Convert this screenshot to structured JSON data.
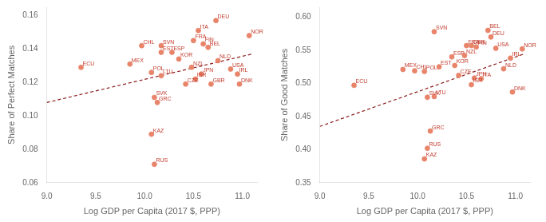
{
  "chart_data": [
    {
      "type": "scatter",
      "xlabel": "Log GDP per Capita (2017 $, PPP)",
      "ylabel": "Share of Perfect Matches",
      "xlim": [
        9.0,
        11.15
      ],
      "ylim": [
        0.06,
        0.165
      ],
      "xticks": [
        {
          "value": 9.0,
          "label": "9.0"
        },
        9.5,
        {
          "value": 10.0,
          "label": "10.0"
        },
        10.5,
        {
          "value": 11.0,
          "label": "11.0"
        }
      ],
      "yticks": [
        0.06,
        0.08,
        {
          "value": 0.1,
          "label": "0.10"
        },
        0.12,
        0.14,
        0.16
      ],
      "grid": false,
      "series": [
        {
          "type": "scatter",
          "color": "#e8846a",
          "marker": "circle",
          "x": [
            9.35,
            9.85,
            9.97,
            10.17,
            10.5,
            10.55,
            11.07,
            10.17,
            10.28,
            10.35,
            10.65,
            10.75,
            10.07,
            10.17,
            10.48,
            10.58,
            10.88,
            10.95,
            10.52,
            10.42,
            10.68,
            10.97,
            10.1,
            10.13,
            10.73,
            10.6,
            10.07,
            10.1
          ],
          "values": [
            0.129,
            0.131,
            0.142,
            0.142,
            0.145,
            0.151,
            0.148,
            0.138,
            0.138,
            0.134,
            0.141,
            0.133,
            0.126,
            0.124,
            0.129,
            0.125,
            0.128,
            0.125,
            0.122,
            0.119,
            0.119,
            0.119,
            0.111,
            0.108,
            0.157,
            0.143,
            0.089,
            0.071
          ]
        },
        {
          "type": "line",
          "color": "#8b1a1a",
          "line_style": "dashed",
          "x": [
            9.0,
            11.1
          ],
          "values": [
            0.108,
            0.137
          ]
        }
      ],
      "annotations": [
        {
          "text": "ECU",
          "x": 9.35,
          "y": 0.129,
          "color": "#c0392b"
        },
        {
          "text": "MEX",
          "x": 9.85,
          "y": 0.131,
          "color": "#c0392b"
        },
        {
          "text": "CHL",
          "x": 9.97,
          "y": 0.142,
          "color": "#c0392b"
        },
        {
          "text": "SVN",
          "x": 10.17,
          "y": 0.142,
          "color": "#c0392b"
        },
        {
          "text": "FRA",
          "x": 10.5,
          "y": 0.145,
          "color": "#c0392b"
        },
        {
          "text": "ITA",
          "x": 10.55,
          "y": 0.151,
          "color": "#c0392b"
        },
        {
          "text": "NOR",
          "x": 11.07,
          "y": 0.148,
          "color": "#c0392b"
        },
        {
          "text": "EST",
          "x": 10.17,
          "y": 0.138,
          "color": "#c0392b"
        },
        {
          "text": "ESP",
          "x": 10.28,
          "y": 0.138,
          "color": "#c0392b"
        },
        {
          "text": "KOR",
          "x": 10.35,
          "y": 0.134,
          "color": "#c0392b"
        },
        {
          "text": "BEL",
          "x": 10.65,
          "y": 0.141,
          "color": "#c0392b"
        },
        {
          "text": "NLD",
          "x": 10.75,
          "y": 0.133,
          "color": "#c0392b"
        },
        {
          "text": "POL",
          "x": 10.07,
          "y": 0.126,
          "color": "#c0392b"
        },
        {
          "text": "LTU",
          "x": 10.17,
          "y": 0.124,
          "color": "#c0392b"
        },
        {
          "text": "NZL",
          "x": 10.48,
          "y": 0.129,
          "color": "#c0392b"
        },
        {
          "text": "JPN",
          "x": 10.58,
          "y": 0.125,
          "color": "#c0392b"
        },
        {
          "text": "USA",
          "x": 10.88,
          "y": 0.128,
          "color": "#c0392b"
        },
        {
          "text": "IRL",
          "x": 10.95,
          "y": 0.125,
          "color": "#c0392b"
        },
        {
          "text": "ISR",
          "x": 10.52,
          "y": 0.122,
          "color": "#c0392b"
        },
        {
          "text": "CZE",
          "x": 10.42,
          "y": 0.119,
          "color": "#c0392b"
        },
        {
          "text": "GBR",
          "x": 10.68,
          "y": 0.119,
          "color": "#c0392b"
        },
        {
          "text": "DNK",
          "x": 10.97,
          "y": 0.119,
          "color": "#c0392b"
        },
        {
          "text": "SVK",
          "x": 10.1,
          "y": 0.111,
          "color": "#c0392b"
        },
        {
          "text": "GRC",
          "x": 10.13,
          "y": 0.108,
          "color": "#c0392b"
        },
        {
          "text": "DEU",
          "x": 10.73,
          "y": 0.157,
          "color": "#c0392b"
        },
        {
          "text": "FIN",
          "x": 10.6,
          "y": 0.143,
          "color": "#c0392b"
        },
        {
          "text": "KAZ",
          "x": 10.07,
          "y": 0.089,
          "color": "#c0392b"
        },
        {
          "text": "RUS",
          "x": 10.1,
          "y": 0.071,
          "color": "#c0392b"
        }
      ]
    },
    {
      "type": "scatter",
      "xlabel": "Log GDP per Capita (2017 $, PPP)",
      "ylabel": "Share of Good Matches",
      "xlim": [
        9.0,
        11.15
      ],
      "ylim": [
        0.35,
        0.615
      ],
      "xticks": [
        {
          "value": 9.0,
          "label": "9.0"
        },
        9.5,
        {
          "value": 10.0,
          "label": "10.0"
        },
        10.5,
        {
          "value": 11.0,
          "label": "11.0"
        }
      ],
      "yticks": [
        0.35,
        {
          "value": 0.4,
          "label": "0.40"
        },
        0.45,
        {
          "value": 0.5,
          "label": "0.50"
        },
        0.55,
        {
          "value": 0.6,
          "label": "0.60"
        }
      ],
      "grid": false,
      "series": [
        {
          "type": "scatter",
          "color": "#e8846a",
          "marker": "circle",
          "x": [
            9.35,
            9.85,
            9.97,
            10.17,
            10.5,
            10.65,
            11.07,
            10.22,
            10.35,
            10.38,
            10.72,
            10.88,
            10.07,
            10.17,
            10.48,
            10.58,
            10.8,
            10.95,
            10.55,
            10.42,
            10.55,
            10.97,
            10.1,
            10.13,
            10.75,
            10.6,
            10.07,
            10.1
          ],
          "values": [
            0.497,
            0.521,
            0.519,
            0.578,
            0.557,
            0.507,
            0.552,
            0.525,
            0.54,
            0.527,
            0.58,
            0.522,
            0.518,
            0.48,
            0.542,
            0.508,
            0.553,
            0.538,
            0.498,
            0.512,
            0.557,
            0.487,
            0.479,
            0.428,
            0.57,
            0.555,
            0.386,
            0.402
          ]
        },
        {
          "type": "line",
          "color": "#8b1a1a",
          "line_style": "dashed",
          "x": [
            9.0,
            11.1
          ],
          "values": [
            0.435,
            0.545
          ]
        }
      ],
      "annotations": [
        {
          "text": "ECU",
          "x": 9.35,
          "y": 0.497,
          "color": "#c0392b"
        },
        {
          "text": "MEX",
          "x": 9.85,
          "y": 0.521,
          "color": "#c0392b"
        },
        {
          "text": "CHL",
          "x": 9.97,
          "y": 0.519,
          "color": "#c0392b"
        },
        {
          "text": "SVN",
          "x": 10.17,
          "y": 0.578,
          "color": "#c0392b"
        },
        {
          "text": "FRA",
          "x": 10.5,
          "y": 0.557,
          "color": "#c0392b"
        },
        {
          "text": "ITA",
          "x": 10.65,
          "y": 0.507,
          "color": "#c0392b"
        },
        {
          "text": "NOR",
          "x": 11.07,
          "y": 0.552,
          "color": "#c0392b"
        },
        {
          "text": "EST",
          "x": 10.22,
          "y": 0.525,
          "color": "#c0392b"
        },
        {
          "text": "ESP",
          "x": 10.35,
          "y": 0.54,
          "color": "#c0392b"
        },
        {
          "text": "KOR",
          "x": 10.38,
          "y": 0.527,
          "color": "#c0392b"
        },
        {
          "text": "BEL",
          "x": 10.72,
          "y": 0.58,
          "color": "#c0392b"
        },
        {
          "text": "NLD",
          "x": 10.88,
          "y": 0.522,
          "color": "#c0392b"
        },
        {
          "text": "POL",
          "x": 10.07,
          "y": 0.518,
          "color": "#c0392b"
        },
        {
          "text": "LTU",
          "x": 10.17,
          "y": 0.48,
          "color": "#c0392b"
        },
        {
          "text": "NZL",
          "x": 10.48,
          "y": 0.542,
          "color": "#c0392b"
        },
        {
          "text": "JPN",
          "x": 10.58,
          "y": 0.508,
          "color": "#c0392b"
        },
        {
          "text": "USA",
          "x": 10.8,
          "y": 0.553,
          "color": "#c0392b"
        },
        {
          "text": "IRL",
          "x": 10.95,
          "y": 0.538,
          "color": "#c0392b"
        },
        {
          "text": "ISR",
          "x": 10.55,
          "y": 0.498,
          "color": "#c0392b"
        },
        {
          "text": "CZE",
          "x": 10.42,
          "y": 0.512,
          "color": "#c0392b"
        },
        {
          "text": "GBR",
          "x": 10.55,
          "y": 0.557,
          "color": "#c0392b"
        },
        {
          "text": "DNK",
          "x": 10.97,
          "y": 0.487,
          "color": "#c0392b"
        },
        {
          "text": "SVK",
          "x": 10.1,
          "y": 0.479,
          "color": "#c0392b"
        },
        {
          "text": "GRC",
          "x": 10.13,
          "y": 0.428,
          "color": "#c0392b"
        },
        {
          "text": "DEU",
          "x": 10.75,
          "y": 0.57,
          "color": "#c0392b"
        },
        {
          "text": "FIN",
          "x": 10.6,
          "y": 0.555,
          "color": "#c0392b"
        },
        {
          "text": "KAZ",
          "x": 10.07,
          "y": 0.386,
          "color": "#c0392b"
        },
        {
          "text": "RUS",
          "x": 10.1,
          "y": 0.402,
          "color": "#c0392b"
        }
      ]
    }
  ]
}
